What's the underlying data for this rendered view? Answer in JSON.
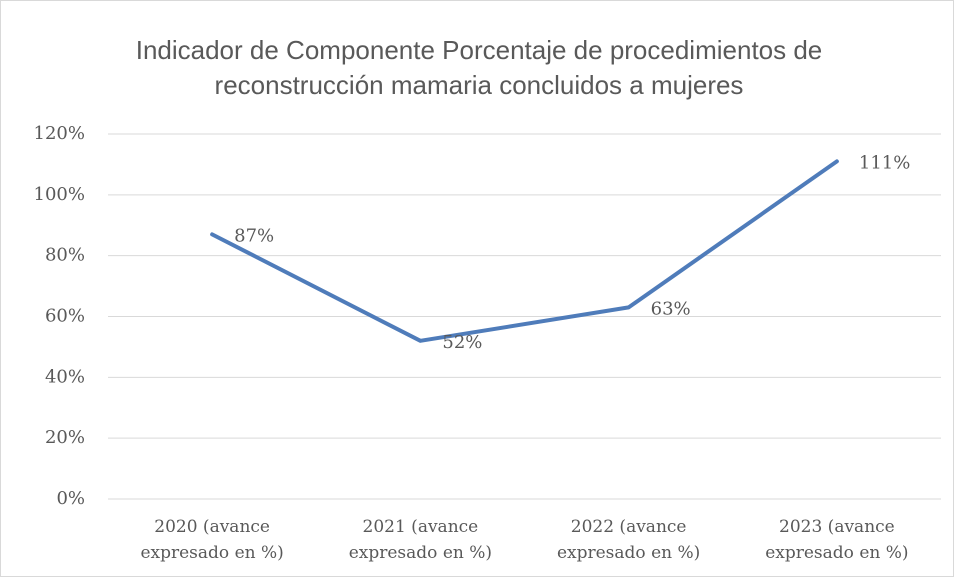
{
  "chart_data": {
    "type": "line",
    "title": "Indicador de Componente Porcentaje de procedimientos de reconstrucción mamaria concluidos a mujeres",
    "categories": [
      "2020 (avance expresado en %)",
      "2021 (avance expresado en %)",
      "2022 (avance expresado en %)",
      "2023 (avance expresado en %)"
    ],
    "series": [
      {
        "color": "#4f7cba",
        "values": [
          87,
          52,
          63,
          111
        ],
        "value_labels": [
          "87%",
          "52%",
          "63%",
          "111%"
        ]
      }
    ],
    "ylim": [
      0,
      120
    ],
    "yticks": [
      {
        "value": 0,
        "label": "0%"
      },
      {
        "value": 20,
        "label": "20%"
      },
      {
        "value": 40,
        "label": "40%"
      },
      {
        "value": 60,
        "label": "60%"
      },
      {
        "value": 80,
        "label": "80%"
      },
      {
        "value": 100,
        "label": "100%"
      },
      {
        "value": 120,
        "label": "120%"
      }
    ],
    "grid": true
  }
}
